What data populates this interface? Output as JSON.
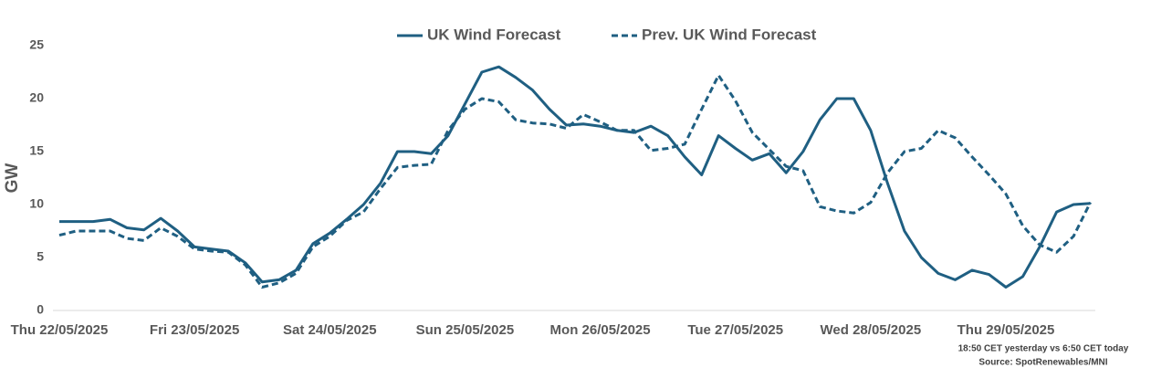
{
  "chart_data": {
    "type": "line",
    "y_label": "GW",
    "categories": [
      "Thu 22/05/2025",
      null,
      null,
      null,
      null,
      null,
      null,
      null,
      "Fri 23/05/2025",
      null,
      null,
      null,
      null,
      null,
      null,
      null,
      "Sat 24/05/2025",
      null,
      null,
      null,
      null,
      null,
      null,
      null,
      "Sun 25/05/2025",
      null,
      null,
      null,
      null,
      null,
      null,
      null,
      "Mon 26/05/2025",
      null,
      null,
      null,
      null,
      null,
      null,
      null,
      "Tue 27/05/2025",
      null,
      null,
      null,
      null,
      null,
      null,
      null,
      "Wed 28/05/2025",
      null,
      null,
      null,
      null,
      null,
      null,
      null,
      "Thu 29/05/2025",
      null,
      null,
      null,
      null,
      null
    ],
    "series": [
      {
        "name": "UK Wind Forecast",
        "color": "#1f5f82",
        "dashed": false,
        "values": [
          8.4,
          8.4,
          8.4,
          8.6,
          7.8,
          7.6,
          8.7,
          7.5,
          6.0,
          5.8,
          5.6,
          4.5,
          2.7,
          2.9,
          3.8,
          6.3,
          7.3,
          8.6,
          10.0,
          12.0,
          15.0,
          15.0,
          14.8,
          16.5,
          19.5,
          22.5,
          23.0,
          22.0,
          20.8,
          19.0,
          17.5,
          17.6,
          17.4,
          17.0,
          16.8,
          17.4,
          16.5,
          14.5,
          12.8,
          16.5,
          15.3,
          14.2,
          14.8,
          13.0,
          15.0,
          18.0,
          20.0,
          20.0,
          17.0,
          12.0,
          7.5,
          5.0,
          3.5,
          2.9,
          3.8,
          3.4,
          2.2,
          3.2,
          6.0,
          9.3,
          10.0,
          10.1
        ]
      },
      {
        "name": "Prev. UK Wind Forecast",
        "color": "#1f5f82",
        "dashed": true,
        "values": [
          7.1,
          7.5,
          7.5,
          7.5,
          6.8,
          6.6,
          7.8,
          7.0,
          5.8,
          5.6,
          5.5,
          4.3,
          2.2,
          2.6,
          3.5,
          6.0,
          7.0,
          8.5,
          9.3,
          11.5,
          13.5,
          13.7,
          13.8,
          17.0,
          19.0,
          20.0,
          19.7,
          18.0,
          17.7,
          17.6,
          17.2,
          18.5,
          17.8,
          17.0,
          17.0,
          15.1,
          15.3,
          15.7,
          19.0,
          22.2,
          19.8,
          16.8,
          15.2,
          13.6,
          13.2,
          9.8,
          9.4,
          9.2,
          10.2,
          13.0,
          15.0,
          15.3,
          17.0,
          16.3,
          14.5,
          12.8,
          11.0,
          8.0,
          6.2,
          5.5,
          7.0,
          10.2
        ]
      }
    ],
    "ylim": [
      0,
      25
    ],
    "yticks": [
      0,
      5,
      10,
      15,
      20,
      25
    ],
    "notes": [
      "18:50 CET yesterday vs  6:50 CET today",
      "Source: SpotRenewables/MNI"
    ]
  }
}
